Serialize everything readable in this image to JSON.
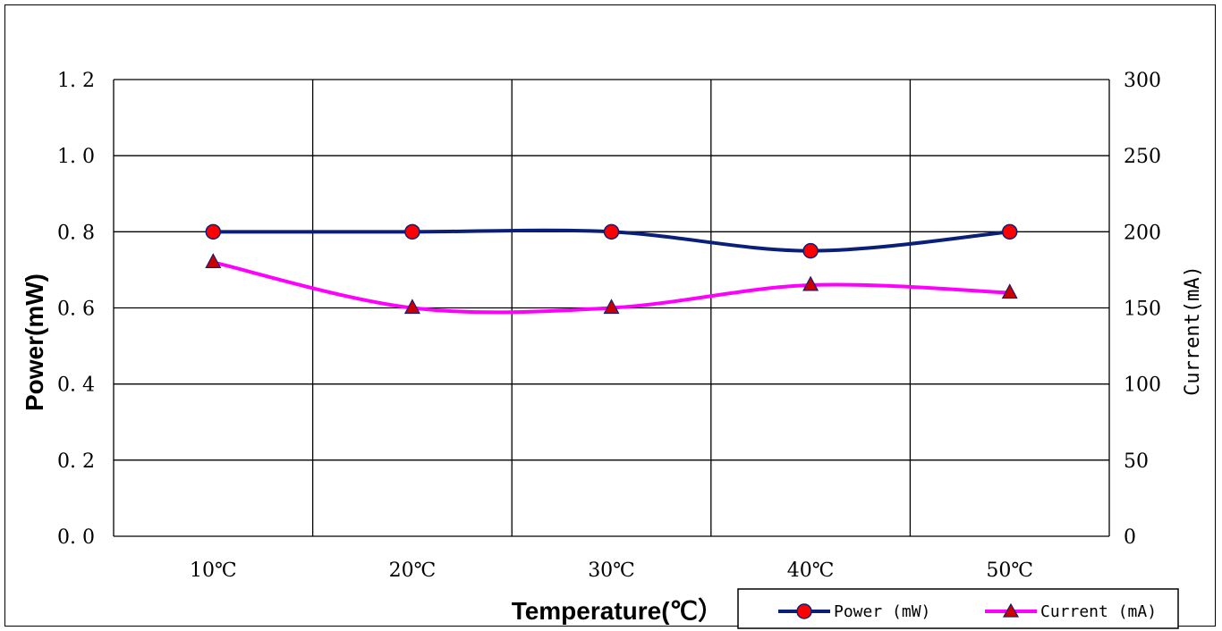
{
  "chart_data": {
    "type": "line",
    "categories": [
      "10℃",
      "20℃",
      "30℃",
      "40℃",
      "50℃"
    ],
    "series": [
      {
        "name": "Power (mW)",
        "axis": "left",
        "values": [
          0.8,
          0.8,
          0.8,
          0.75,
          0.8
        ],
        "color": "#0a1f7a",
        "marker": "circle",
        "marker_color": "#ff0000"
      },
      {
        "name": "Current (mA)",
        "axis": "right",
        "values": [
          180,
          150,
          150,
          165,
          160
        ],
        "color": "#ff00ff",
        "marker": "triangle",
        "marker_color": "#cc0000"
      }
    ],
    "xlabel": "Temperature(℃）",
    "ylabel_left": "Power(mW)",
    "ylabel_right": "Current(mA)",
    "ylim_left": [
      0,
      1.2
    ],
    "ylim_right": [
      0,
      300
    ],
    "yticks_left": [
      "0. 0",
      "0. 2",
      "0. 4",
      "0. 6",
      "0. 8",
      "1. 0",
      "1. 2"
    ],
    "yticks_right": [
      "0",
      "50",
      "100",
      "150",
      "200",
      "250",
      "300"
    ],
    "grid": true,
    "legend_position": "bottom-right",
    "legend_labels": [
      "Power (mW)",
      "Current (mA)"
    ]
  }
}
